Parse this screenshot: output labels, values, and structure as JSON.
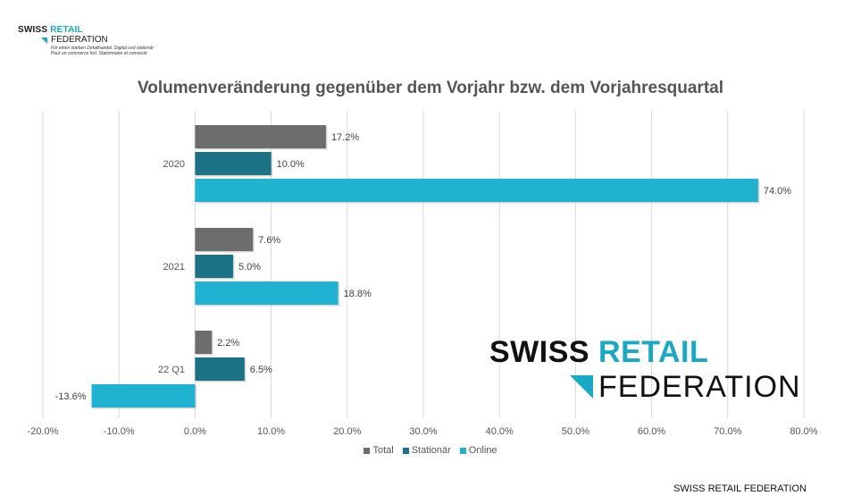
{
  "logo": {
    "swiss": "SWISS",
    "retail": "RETAIL",
    "federation": "FEDERATION",
    "tagline1": "Für einen starken Detailhandel. Digital und stationär",
    "tagline2": "Pour un commerce fort. Stationnaire et connecté"
  },
  "footer": "SWISS RETAIL FEDERATION",
  "colors": {
    "Total": "#6d6d6d",
    "Stationär": "#1b7285",
    "Online": "#1fb3d1"
  },
  "chart_data": {
    "type": "bar",
    "orientation": "horizontal",
    "title": "Volumenveränderung gegenüber dem Vorjahr bzw. dem Vorjahresquartal",
    "categories": [
      "2020",
      "2021",
      "22 Q1"
    ],
    "series": [
      {
        "name": "Total",
        "values": [
          17.2,
          7.6,
          2.2
        ]
      },
      {
        "name": "Stationär",
        "values": [
          10.0,
          5.0,
          6.5
        ]
      },
      {
        "name": "Online",
        "values": [
          74.0,
          18.8,
          -13.6
        ]
      }
    ],
    "value_labels": [
      [
        "17.2%",
        "7.6%",
        "2.2%"
      ],
      [
        "10.0%",
        "5.0%",
        "6.5%"
      ],
      [
        "74.0%",
        "18.8%",
        "-13.6%"
      ]
    ],
    "xlim": [
      -20,
      80
    ],
    "xticks": [
      -20,
      -10,
      0,
      10,
      20,
      30,
      40,
      50,
      60,
      70,
      80
    ],
    "xtick_labels": [
      "-20.0%",
      "-10.0%",
      "0.0%",
      "10.0%",
      "20.0%",
      "30.0%",
      "40.0%",
      "50.0%",
      "60.0%",
      "70.0%",
      "80.0%"
    ],
    "grid": true,
    "legend": "bottom"
  }
}
